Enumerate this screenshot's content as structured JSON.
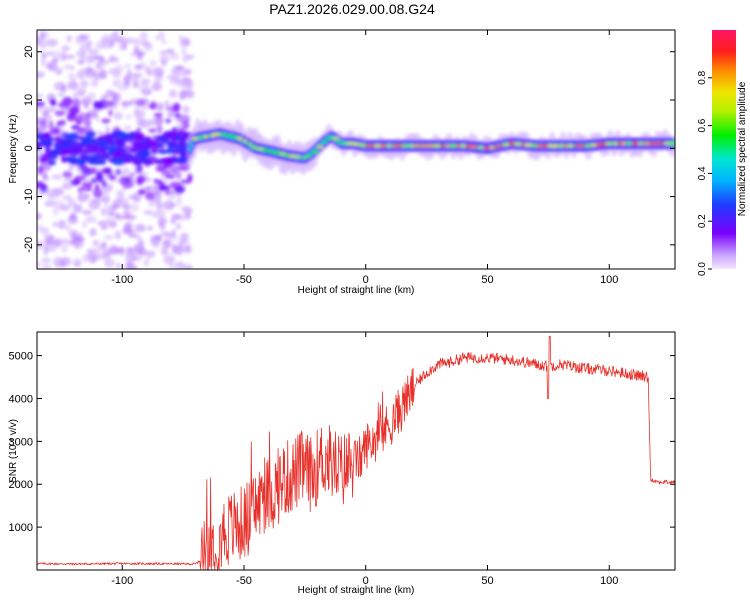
{
  "figure_title": "PAZ1.2026.029.00.08.G24",
  "colors": {
    "snr_line": "#e8302a",
    "axis": "#000000",
    "background": "#ffffff"
  },
  "chart_data": [
    {
      "type": "heatmap",
      "title": "PAZ1.2026.029.00.08.G24",
      "xlabel": "Height of straight line (km)",
      "ylabel": "Frequency (Hz)",
      "xlim": [
        -135,
        127
      ],
      "ylim": [
        -25,
        24.5
      ],
      "x_ticks": [
        -100,
        -50,
        0,
        50,
        100
      ],
      "y_ticks": [
        -20,
        -10,
        0,
        10,
        20
      ],
      "grid": false,
      "colorbar": {
        "label": "Normalized spectral amplitude",
        "range": [
          0,
          1
        ],
        "ticks": [
          0.0,
          0.2,
          0.4,
          0.6,
          0.8
        ],
        "tick_labels": [
          "0.0",
          "0.2",
          "0.4",
          "0.6",
          "0.8"
        ],
        "colormap": "rainbow (purple-blue-cyan-green-yellow-red-pink)"
      },
      "ridge_center_hz": {
        "x": [
          -135,
          -100,
          -72,
          -70,
          -60,
          -52,
          -45,
          -40,
          -32,
          -25,
          -22,
          -18,
          -14,
          -10,
          -5,
          0,
          10,
          20,
          30,
          40,
          50,
          60,
          70,
          80,
          90,
          100,
          110,
          127
        ],
        "y": [
          0,
          0,
          0,
          2,
          3,
          2,
          0,
          -0.5,
          -1.5,
          -2,
          -1,
          1,
          2.5,
          1,
          1,
          0.5,
          0.5,
          0.5,
          0.5,
          0.5,
          0,
          1,
          0.5,
          0.5,
          0.5,
          1,
          1,
          1
        ]
      }
    },
    {
      "type": "line",
      "xlabel": "Height of straight line (km)",
      "ylabel": "SNR (10 * v/v)",
      "xlim": [
        -135,
        127
      ],
      "ylim": [
        0,
        5550
      ],
      "x_ticks": [
        -100,
        -50,
        0,
        50,
        100
      ],
      "y_ticks": [
        1000,
        2000,
        3000,
        4000,
        5000
      ],
      "grid": false,
      "series": [
        {
          "x": [
            -135,
            -120,
            -100,
            -80,
            -70,
            -66,
            -62,
            -58,
            -54,
            -50,
            -46,
            -42,
            -38,
            -34,
            -30,
            -26,
            -22,
            -18,
            -14,
            -10,
            -6,
            -2,
            0,
            5,
            10,
            15,
            20,
            25,
            30,
            35,
            40,
            50,
            60,
            70,
            75,
            80,
            90,
            100,
            110,
            116,
            117,
            118,
            120,
            127
          ],
          "y": [
            150,
            140,
            150,
            145,
            140,
            300,
            700,
            900,
            1000,
            1100,
            1400,
            1700,
            1800,
            2100,
            2200,
            2400,
            2200,
            2600,
            2500,
            2300,
            2500,
            2600,
            2900,
            3100,
            3400,
            3800,
            4300,
            4600,
            4800,
            4850,
            4950,
            4950,
            4900,
            4800,
            4750,
            4800,
            4700,
            4650,
            4550,
            4500,
            2100,
            2100,
            2050,
            2050
          ]
        }
      ]
    }
  ]
}
